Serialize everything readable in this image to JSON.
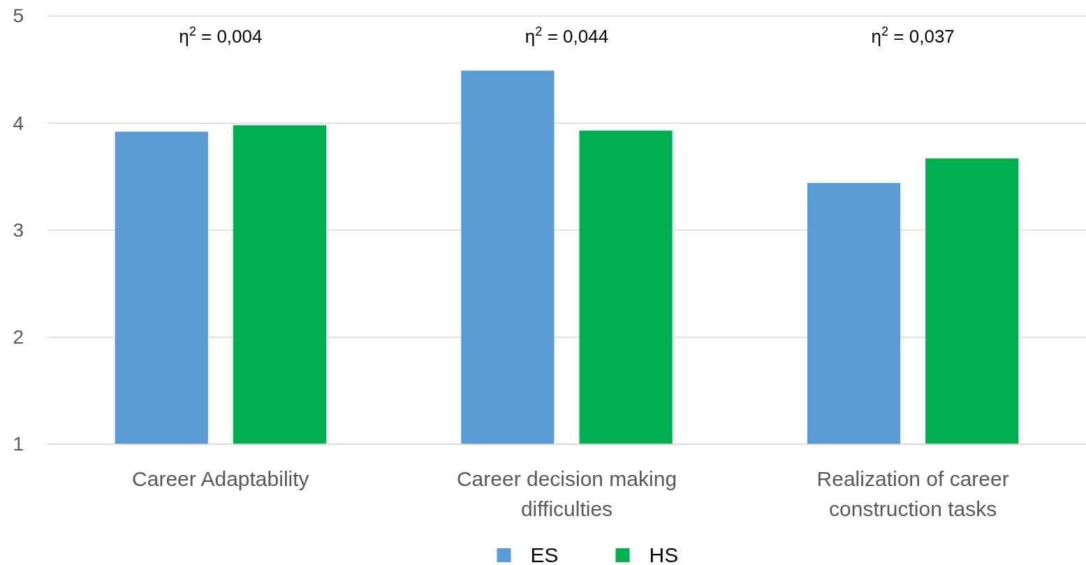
{
  "chart_data": {
    "type": "bar",
    "categories": [
      "Career Adaptability",
      "Career decision making difficulties",
      "Realization of career construction tasks"
    ],
    "series": [
      {
        "name": "ES",
        "color": "#5b9bd5",
        "values": [
          3.92,
          4.49,
          3.44
        ]
      },
      {
        "name": "HS",
        "color": "#00b050",
        "values": [
          3.98,
          3.93,
          3.67
        ]
      }
    ],
    "ylim": [
      1,
      5
    ],
    "yticks": [
      1,
      2,
      3,
      4,
      5
    ],
    "grid": "y",
    "legend": "bottom",
    "annotations": [
      "η$^{2}$ = 0,004",
      "η$^{2}$ = 0,044",
      "η$^{2}$ = 0,037"
    ]
  }
}
